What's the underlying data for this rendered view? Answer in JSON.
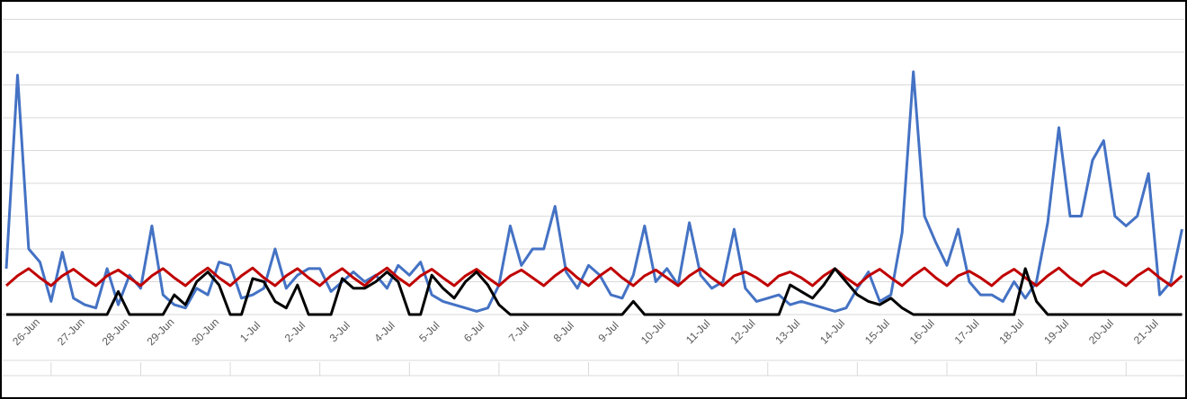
{
  "chart_data": {
    "type": "line",
    "xlim": [
      0,
      26.3
    ],
    "ylim": [
      0,
      9
    ],
    "yticks": [
      0,
      1,
      2,
      3,
      4,
      5,
      6,
      7,
      8,
      9
    ],
    "grid": true,
    "xticks": [
      {
        "value": 0.5,
        "label": "26-Jun"
      },
      {
        "value": 1.5,
        "label": "27-Jun"
      },
      {
        "value": 2.5,
        "label": "28-Jun"
      },
      {
        "value": 3.5,
        "label": "29-Jun"
      },
      {
        "value": 4.5,
        "label": "30-Jun"
      },
      {
        "value": 5.5,
        "label": "1-Jul"
      },
      {
        "value": 6.5,
        "label": "2-Jul"
      },
      {
        "value": 7.5,
        "label": "3-Jul"
      },
      {
        "value": 8.5,
        "label": "4-Jul"
      },
      {
        "value": 9.5,
        "label": "5-Jul"
      },
      {
        "value": 10.5,
        "label": "6-Jul"
      },
      {
        "value": 11.5,
        "label": "7-Jul"
      },
      {
        "value": 12.5,
        "label": "8-Jul"
      },
      {
        "value": 13.5,
        "label": "9-Jul"
      },
      {
        "value": 14.5,
        "label": "10-Jul"
      },
      {
        "value": 15.5,
        "label": "11-Jul"
      },
      {
        "value": 16.5,
        "label": "12-Jul"
      },
      {
        "value": 17.5,
        "label": "13-Jul"
      },
      {
        "value": 18.5,
        "label": "14-Jul"
      },
      {
        "value": 19.5,
        "label": "15-Jul"
      },
      {
        "value": 20.5,
        "label": "16-Jul"
      },
      {
        "value": 21.5,
        "label": "17-Jul"
      },
      {
        "value": 22.5,
        "label": "18-Jul"
      },
      {
        "value": 23.5,
        "label": "19-Jul"
      },
      {
        "value": 24.5,
        "label": "20-Jul"
      },
      {
        "value": 25.5,
        "label": "21-Jul"
      }
    ],
    "x": [
      0,
      0.25,
      0.5,
      0.75,
      1,
      1.25,
      1.5,
      1.75,
      2,
      2.25,
      2.5,
      2.75,
      3,
      3.25,
      3.5,
      3.75,
      4,
      4.25,
      4.5,
      4.75,
      5,
      5.25,
      5.5,
      5.75,
      6,
      6.25,
      6.5,
      6.75,
      7,
      7.25,
      7.5,
      7.75,
      8,
      8.25,
      8.5,
      8.75,
      9,
      9.25,
      9.5,
      9.75,
      10,
      10.25,
      10.5,
      10.75,
      11,
      11.25,
      11.5,
      11.75,
      12,
      12.25,
      12.5,
      12.75,
      13,
      13.25,
      13.5,
      13.75,
      14,
      14.25,
      14.5,
      14.75,
      15,
      15.25,
      15.5,
      15.75,
      16,
      16.25,
      16.5,
      16.75,
      17,
      17.25,
      17.5,
      17.75,
      18,
      18.25,
      18.5,
      18.75,
      19,
      19.25,
      19.5,
      19.75,
      20,
      20.25,
      20.5,
      20.75,
      21,
      21.25,
      21.5,
      21.75,
      22,
      22.25,
      22.5,
      22.75,
      23,
      23.25,
      23.5,
      23.75,
      24,
      24.25,
      24.5,
      24.75,
      25,
      25.25,
      25.5,
      25.75,
      26,
      26.25
    ],
    "series": [
      {
        "color": "#4472c4",
        "values": [
          1.4,
          7.3,
          2.0,
          1.6,
          0.4,
          1.9,
          0.5,
          0.3,
          0.2,
          1.4,
          0.3,
          1.2,
          0.8,
          2.7,
          0.6,
          0.3,
          0.2,
          0.8,
          0.6,
          1.6,
          1.5,
          0.5,
          0.6,
          0.8,
          2.0,
          0.8,
          1.2,
          1.4,
          1.4,
          0.7,
          1.0,
          1.3,
          1.0,
          1.2,
          0.8,
          1.5,
          1.2,
          1.6,
          0.6,
          0.4,
          0.3,
          0.2,
          0.1,
          0.2,
          0.9,
          2.7,
          1.5,
          2.0,
          2.0,
          3.3,
          1.3,
          0.8,
          1.5,
          1.2,
          0.6,
          0.5,
          1.2,
          2.7,
          1.0,
          1.4,
          0.9,
          2.8,
          1.2,
          0.8,
          1.0,
          2.6,
          0.8,
          0.4,
          0.5,
          0.6,
          0.3,
          0.4,
          0.3,
          0.2,
          0.1,
          0.2,
          0.8,
          1.3,
          0.4,
          0.6,
          2.5,
          7.4,
          3.0,
          2.2,
          1.5,
          2.6,
          1.0,
          0.6,
          0.6,
          0.4,
          1.0,
          0.5,
          1.0,
          2.8,
          5.7,
          3.0,
          3.0,
          4.7,
          5.3,
          3.0,
          2.7,
          3.0,
          4.3,
          0.6,
          1.0,
          2.6
        ]
      },
      {
        "color": "#c00000",
        "values": [
          0.88,
          1.18,
          1.4,
          1.12,
          0.88,
          1.18,
          1.38,
          1.12,
          0.88,
          1.18,
          1.36,
          1.12,
          0.88,
          1.18,
          1.4,
          1.12,
          0.88,
          1.18,
          1.42,
          1.12,
          0.88,
          1.18,
          1.42,
          1.12,
          0.88,
          1.18,
          1.4,
          1.12,
          0.88,
          1.18,
          1.4,
          1.12,
          0.88,
          1.18,
          1.42,
          1.12,
          0.88,
          1.18,
          1.38,
          1.12,
          0.88,
          1.18,
          1.38,
          1.12,
          0.88,
          1.18,
          1.36,
          1.12,
          0.88,
          1.18,
          1.42,
          1.12,
          0.88,
          1.18,
          1.42,
          1.12,
          0.88,
          1.18,
          1.36,
          1.12,
          0.88,
          1.18,
          1.4,
          1.12,
          0.88,
          1.18,
          1.3,
          1.12,
          0.88,
          1.18,
          1.3,
          1.12,
          0.88,
          1.18,
          1.4,
          1.12,
          0.88,
          1.18,
          1.38,
          1.12,
          0.88,
          1.18,
          1.42,
          1.12,
          0.88,
          1.18,
          1.32,
          1.12,
          0.88,
          1.18,
          1.38,
          1.12,
          0.88,
          1.18,
          1.42,
          1.12,
          0.88,
          1.18,
          1.32,
          1.12,
          0.88,
          1.18,
          1.4,
          1.12,
          0.88,
          1.18
        ]
      },
      {
        "color": "#000000",
        "values": [
          0,
          0,
          0,
          0,
          0,
          0,
          0,
          0,
          0,
          0,
          0.7,
          0,
          0,
          0,
          0,
          0.6,
          0.3,
          1.0,
          1.3,
          0.9,
          0,
          0,
          1.1,
          1.0,
          0.4,
          0.2,
          0.9,
          0,
          0,
          0,
          1.1,
          0.8,
          0.8,
          1.0,
          1.3,
          1.0,
          0,
          0,
          1.2,
          0.8,
          0.5,
          1.0,
          1.3,
          0.9,
          0.3,
          0,
          0,
          0,
          0,
          0,
          0,
          0,
          0,
          0,
          0,
          0,
          0.4,
          0,
          0,
          0,
          0,
          0,
          0,
          0,
          0,
          0,
          0,
          0,
          0,
          0,
          0.9,
          0.7,
          0.5,
          0.9,
          1.4,
          1.0,
          0.6,
          0.4,
          0.3,
          0.5,
          0.2,
          0,
          0,
          0,
          0,
          0,
          0,
          0,
          0,
          0,
          0,
          1.4,
          0.4,
          0,
          0,
          0,
          0,
          0,
          0,
          0,
          0,
          0,
          0,
          0,
          0,
          0
        ]
      }
    ]
  }
}
